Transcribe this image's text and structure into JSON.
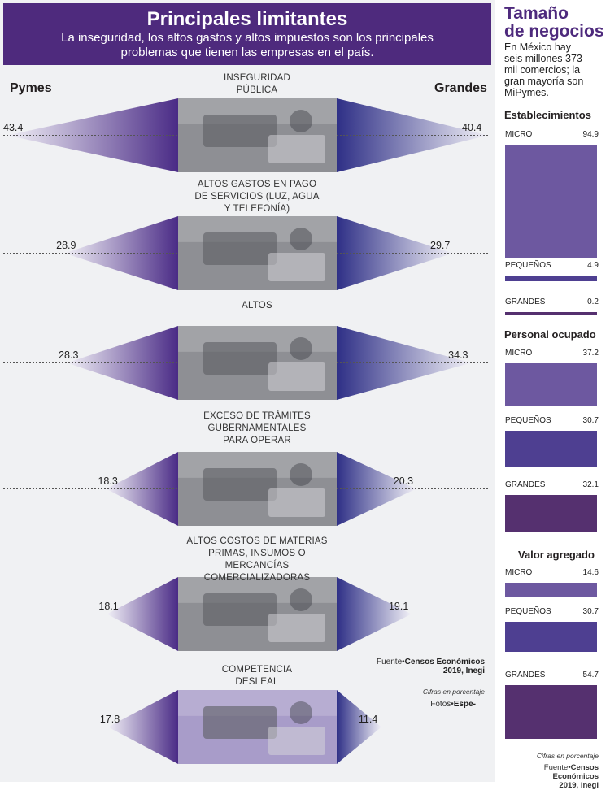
{
  "header": {
    "title": "Principales limitantes",
    "subtitle_line1": "La inseguridad, los altos gastos y altos impuestos son los principales",
    "subtitle_line2": "problemas que tienen las empresas en el país."
  },
  "columns": {
    "left": "Pymes",
    "right": "Grandes"
  },
  "chart_data": {
    "type": "bar",
    "note": "Cifras en porcentaje",
    "categories_lines": [
      [
        "INSEGURIDAD",
        "PÚBLICA"
      ],
      [
        "ALTOS GASTOS EN PAGO",
        "DE SERVICIOS (LUZ, AGUA",
        "Y TELEFONÍA)"
      ],
      [
        "ALTOS"
      ],
      [
        "EXCESO DE TRÁMITES",
        "GUBERNAMENTALES",
        "PARA OPERAR"
      ],
      [
        "ALTOS COSTOS DE MATERIAS",
        "PRIMAS, INSUMOS O MERCANCÍAS",
        "COMERCIALIZADORAS"
      ],
      [
        "COMPETENCIA",
        "DESLEAL"
      ]
    ],
    "series": [
      {
        "name": "Pymes",
        "values": [
          43.4,
          28.9,
          28.3,
          18.3,
          18.1,
          17.8
        ],
        "labels": [
          "43.4",
          "28.9",
          "28.3",
          "18.3",
          "18.1",
          "17.8"
        ]
      },
      {
        "name": "Grandes",
        "values": [
          40.4,
          29.7,
          34.3,
          20.3,
          19.1,
          11.4
        ],
        "labels": [
          "40.4",
          "29.7",
          "34.3",
          "20.3",
          "19.1",
          "11.4"
        ]
      }
    ]
  },
  "source": {
    "prefix": "Fuente•",
    "bold_line1": "Censos Económicos",
    "bold_line2": "2019, Inegi",
    "note": "Cifras en porcentaje",
    "photos_prefix": "Fotos•",
    "photos_bold": "Espe-"
  },
  "sidebar": {
    "title_line1": "Tamaño",
    "title_line2": "de negocios",
    "intro": [
      "En México hay",
      "seis millones 373",
      "mil comercios; la",
      "gran mayoría son",
      "MiPymes."
    ],
    "sections": [
      {
        "title": "Establecimientos",
        "rows": [
          {
            "label": "MICRO",
            "value": 94.9,
            "value_text": "94.9",
            "color": "#6d58a0"
          },
          {
            "label": "PEQUEÑOS",
            "value": 4.9,
            "value_text": "4.9",
            "color": "#4e3f91"
          },
          {
            "label": "GRANDES",
            "value": 0.2,
            "value_text": "0.2",
            "color": "#55306f"
          }
        ]
      },
      {
        "title": "Personal ocupado",
        "rows": [
          {
            "label": "MICRO",
            "value": 37.2,
            "value_text": "37.2",
            "color": "#6d58a0"
          },
          {
            "label": "PEQUEÑOS",
            "value": 30.7,
            "value_text": "30.7",
            "color": "#4e3f91"
          },
          {
            "label": "GRANDES",
            "value": 32.1,
            "value_text": "32.1",
            "color": "#55306f"
          }
        ]
      },
      {
        "title": "Valor agregado",
        "rows": [
          {
            "label": "MICRO",
            "value": 14.6,
            "value_text": "14.6",
            "color": "#6d58a0"
          },
          {
            "label": "PEQUEÑOS",
            "value": 30.7,
            "value_text": "30.7",
            "color": "#4e3f91"
          },
          {
            "label": "GRANDES",
            "value": 54.7,
            "value_text": "54.7",
            "color": "#55306f"
          }
        ]
      }
    ],
    "note": "Cifras en porcentaje",
    "source_prefix": "Fuente•",
    "source_bold_line1": "Censos Económicos",
    "source_bold_line2": "2019, Inegi"
  },
  "colors": {
    "purple_dark": "#4e2a7d",
    "purple_mid": "#5b3f9a",
    "purple_light": "#8a78bd"
  }
}
